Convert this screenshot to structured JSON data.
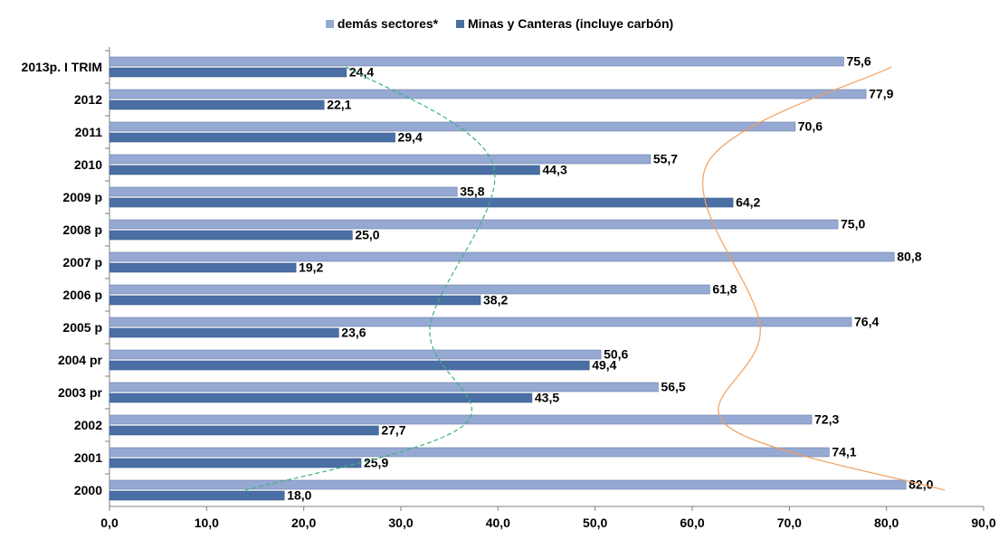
{
  "chart_data": {
    "type": "bar",
    "orientation": "horizontal",
    "categories": [
      "2013p. I TRIM",
      "2012",
      "2011",
      "2010",
      "2009 p",
      "2008 p",
      "2007 p",
      "2006 p",
      "2005 p",
      "2004 pr",
      "2003 pr",
      "2002",
      "2001",
      "2000"
    ],
    "series": [
      {
        "name": "demás sectores*",
        "color": "#95a9d3",
        "values": [
          75.6,
          77.9,
          70.6,
          55.7,
          35.8,
          75.0,
          80.8,
          61.8,
          76.4,
          50.6,
          56.5,
          72.3,
          74.1,
          82.0
        ],
        "labels": [
          "75,6",
          "77,9",
          "70,6",
          "55,7",
          "35,8",
          "75,0",
          "80,8",
          "61,8",
          "76,4",
          "50,6",
          "56,5",
          "72,3",
          "74,1",
          "82,0"
        ]
      },
      {
        "name": "Minas y Canteras (incluye carbón)",
        "color": "#4a6fa5",
        "values": [
          24.4,
          22.1,
          29.4,
          44.3,
          64.2,
          25.0,
          19.2,
          38.2,
          23.6,
          49.4,
          43.5,
          27.7,
          25.9,
          18.0
        ],
        "labels": [
          "24,4",
          "22,1",
          "29,4",
          "44,3",
          "64,2",
          "25,0",
          "19,2",
          "38,2",
          "23,6",
          "49,4",
          "43,5",
          "27,7",
          "25,9",
          "18,0"
        ]
      }
    ],
    "xlim": [
      0,
      90
    ],
    "xticks": [
      0,
      10,
      20,
      30,
      40,
      50,
      60,
      70,
      80,
      90
    ],
    "xtick_labels": [
      "0,0",
      "10,0",
      "20,0",
      "30,0",
      "40,0",
      "50,0",
      "60,0",
      "70,0",
      "80,0",
      "90,0"
    ],
    "grid": false,
    "legend_position": "top-center",
    "trend_curves": [
      {
        "series": "Minas y Canteras (incluye carbón)",
        "color": "#3cb37a",
        "style": "dashed",
        "points": [
          [
            24.4,
            "2013p. I TRIM"
          ],
          [
            39.5,
            "2010"
          ],
          [
            33.0,
            "2005 p"
          ],
          [
            36.5,
            "2002"
          ],
          [
            14.0,
            "2000"
          ]
        ]
      },
      {
        "series": "demás sectores*",
        "color": "#f0a060",
        "style": "solid",
        "points": [
          [
            80.5,
            "2013p. I TRIM"
          ],
          [
            61.5,
            "2010"
          ],
          [
            67.0,
            "2005 p"
          ],
          [
            63.5,
            "2002"
          ],
          [
            86.0,
            "2000"
          ]
        ]
      }
    ]
  }
}
